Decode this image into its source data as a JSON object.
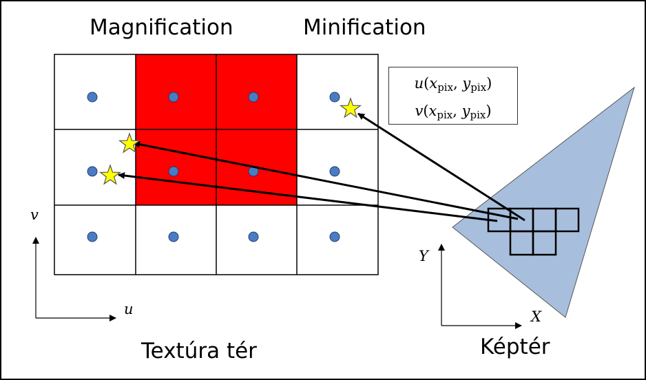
{
  "headings": {
    "magnification": "Magnification",
    "minification": "Minification"
  },
  "captions": {
    "texture_space": "Textúra tér",
    "image_space": "Képtér"
  },
  "texture_axes": {
    "u": "u",
    "v": "v"
  },
  "image_axes": {
    "x": "X",
    "y": "Y"
  },
  "formula": {
    "u_fn": "u",
    "v_fn": "v",
    "x_var": "x",
    "y_var": "y",
    "sub": "pix",
    "open": "(",
    "sep": ", ",
    "close": ")"
  },
  "colors": {
    "highlight": "#ff0000",
    "texel_dot": "#4a7cc4",
    "star": "#ffff00",
    "image_plane": "#a7bfdc"
  }
}
